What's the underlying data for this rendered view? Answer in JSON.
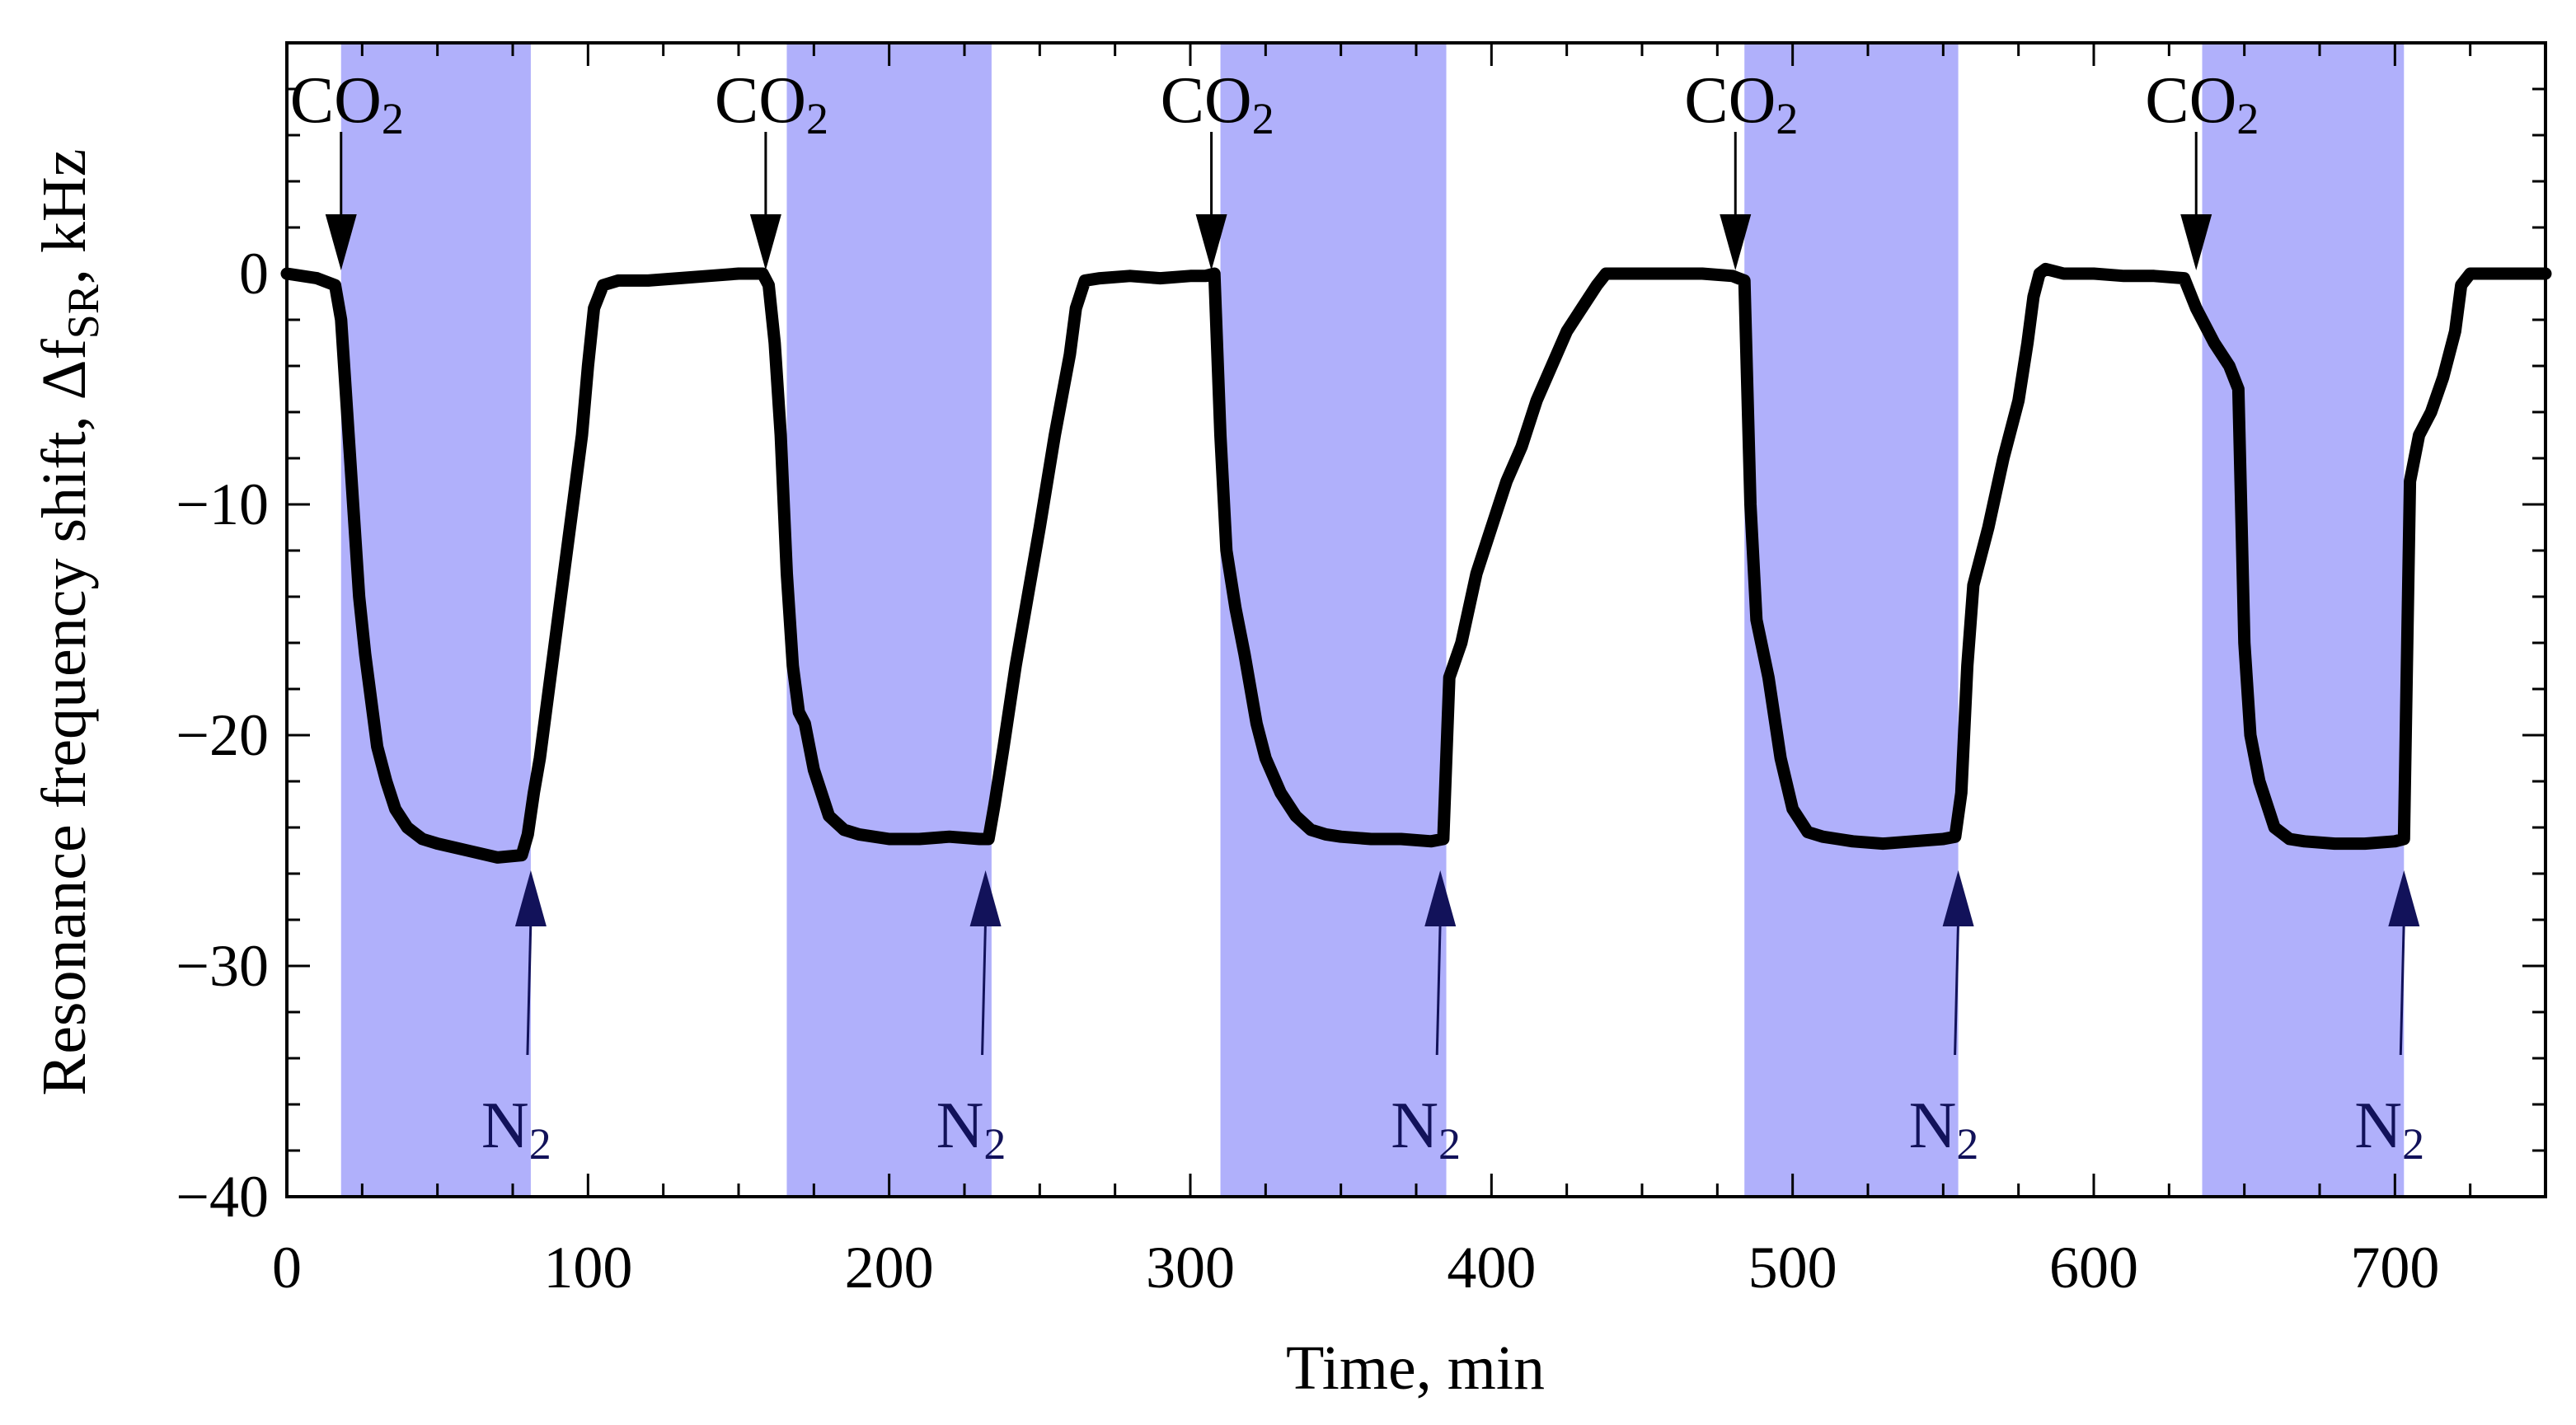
{
  "chart_data": {
    "type": "line",
    "title": "",
    "xlabel": "Time, min",
    "ylabel": {
      "main": "Resonance frequency shift, Δf",
      "subscript": "SR",
      "suffix": ", kHz"
    },
    "xlim": [
      0,
      750
    ],
    "ylim": [
      -40,
      10
    ],
    "xticks": [
      0,
      100,
      200,
      300,
      400,
      500,
      600,
      700
    ],
    "xtick_labels": [
      "0",
      "100",
      "200",
      "300",
      "400",
      "500",
      "600",
      "700"
    ],
    "yticks": [
      0,
      -10,
      -20,
      -30,
      -40
    ],
    "ytick_labels": [
      "0",
      "−10",
      "−20",
      "−30",
      "−40"
    ],
    "grid": false,
    "colors": {
      "line": "#000000",
      "band": "#b0b0fb",
      "co2_arrow": "#000000",
      "n2_arrow": "#12125a"
    },
    "co2_bands": [
      {
        "start": 18,
        "end": 81
      },
      {
        "start": 166,
        "end": 234
      },
      {
        "start": 310,
        "end": 385
      },
      {
        "start": 484,
        "end": 555
      },
      {
        "start": 636,
        "end": 703
      }
    ],
    "annotations": [
      {
        "kind": "co2",
        "label": "CO",
        "sub": "2",
        "x": 18,
        "y_tip": 0
      },
      {
        "kind": "co2",
        "label": "CO",
        "sub": "2",
        "x": 159,
        "y_tip": 0
      },
      {
        "kind": "co2",
        "label": "CO",
        "sub": "2",
        "x": 307,
        "y_tip": 0
      },
      {
        "kind": "co2",
        "label": "CO",
        "sub": "2",
        "x": 481,
        "y_tip": 0
      },
      {
        "kind": "co2",
        "label": "CO",
        "sub": "2",
        "x": 634,
        "y_tip": 0
      },
      {
        "kind": "n2",
        "label": "N",
        "sub": "2",
        "x": 81,
        "y_tip": -25.5
      },
      {
        "kind": "n2",
        "label": "N",
        "sub": "2",
        "x": 232,
        "y_tip": -25.5
      },
      {
        "kind": "n2",
        "label": "N",
        "sub": "2",
        "x": 383,
        "y_tip": -25.5
      },
      {
        "kind": "n2",
        "label": "N",
        "sub": "2",
        "x": 555,
        "y_tip": -25.5
      },
      {
        "kind": "n2",
        "label": "N",
        "sub": "2",
        "x": 703,
        "y_tip": -25.5
      }
    ],
    "series": [
      {
        "name": "Δf_SR",
        "x": [
          0,
          10,
          16,
          18,
          20,
          22,
          24,
          26,
          28,
          30,
          33,
          36,
          40,
          45,
          50,
          60,
          70,
          78,
          80,
          82,
          84,
          86,
          88,
          90,
          92,
          95,
          98,
          100,
          102,
          105,
          110,
          120,
          130,
          140,
          150,
          155,
          158,
          160,
          162,
          164,
          166,
          168,
          170,
          172,
          175,
          180,
          185,
          190,
          200,
          210,
          220,
          230,
          233,
          235,
          238,
          242,
          246,
          250,
          255,
          260,
          262,
          265,
          270,
          280,
          290,
          300,
          305,
          308,
          310,
          312,
          315,
          318,
          320,
          322,
          325,
          330,
          335,
          340,
          345,
          350,
          360,
          370,
          380,
          384,
          386,
          390,
          395,
          400,
          405,
          410,
          415,
          420,
          425,
          430,
          435,
          438,
          440,
          450,
          460,
          470,
          480,
          482,
          484,
          486,
          488,
          492,
          496,
          500,
          505,
          510,
          515,
          520,
          530,
          540,
          550,
          554,
          556,
          558,
          560,
          565,
          570,
          575,
          578,
          580,
          582,
          584,
          590,
          600,
          610,
          620,
          630,
          634,
          636,
          640,
          645,
          648,
          650,
          652,
          655,
          660,
          665,
          670,
          680,
          690,
          700,
          703,
          705,
          708,
          712,
          716,
          720,
          722,
          725,
          735,
          745,
          750
        ],
        "values": [
          0,
          -0.2,
          -0.5,
          -2,
          -6,
          -10,
          -14,
          -16.5,
          -18.5,
          -20.5,
          -22,
          -23.2,
          -24,
          -24.5,
          -24.7,
          -25,
          -25.3,
          -25.2,
          -24.3,
          -22.5,
          -21,
          -19,
          -17,
          -15,
          -13,
          -10,
          -7,
          -4,
          -1.5,
          -0.5,
          -0.3,
          -0.3,
          -0.2,
          -0.1,
          0,
          0,
          0,
          -0.5,
          -3,
          -7,
          -13,
          -17,
          -19,
          -19.5,
          -21.5,
          -23.5,
          -24.1,
          -24.3,
          -24.5,
          -24.5,
          -24.4,
          -24.5,
          -24.5,
          -23,
          -20.5,
          -17,
          -14,
          -11,
          -7,
          -3.5,
          -1.5,
          -0.3,
          -0.2,
          -0.1,
          -0.2,
          -0.1,
          -0.1,
          0,
          -7,
          -12,
          -14.5,
          -16.5,
          -18,
          -19.5,
          -21,
          -22.5,
          -23.5,
          -24.1,
          -24.3,
          -24.4,
          -24.5,
          -24.5,
          -24.6,
          -24.5,
          -17.5,
          -16,
          -13,
          -11,
          -9,
          -7.5,
          -5.5,
          -4,
          -2.5,
          -1.5,
          -0.5,
          0,
          0,
          0,
          0,
          0,
          -0.1,
          -0.2,
          -0.3,
          -10,
          -15,
          -17.5,
          -21,
          -23.2,
          -24.2,
          -24.4,
          -24.5,
          -24.6,
          -24.7,
          -24.6,
          -24.5,
          -24.4,
          -22.5,
          -17,
          -13.5,
          -11,
          -8,
          -5.5,
          -3,
          -1,
          0,
          0.2,
          0,
          0,
          -0.1,
          -0.1,
          -0.2,
          -1.5,
          -2,
          -3,
          -4,
          -5,
          -16,
          -20,
          -22,
          -24,
          -24.5,
          -24.6,
          -24.7,
          -24.7,
          -24.6,
          -24.5,
          -9,
          -7,
          -6,
          -4.5,
          -2.5,
          -0.5,
          0,
          0,
          0,
          0
        ]
      }
    ]
  }
}
